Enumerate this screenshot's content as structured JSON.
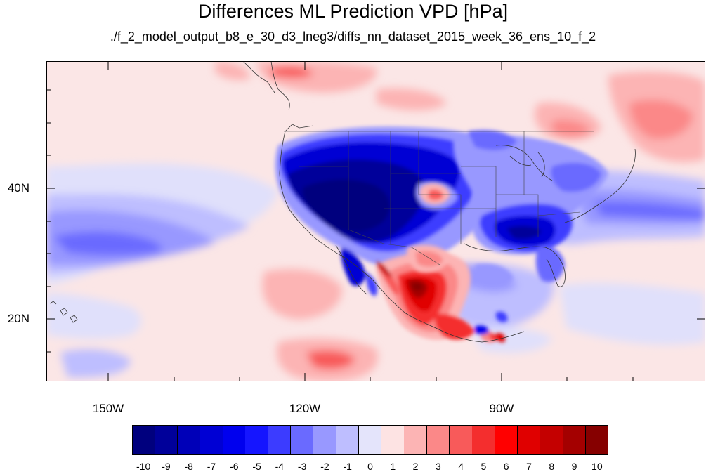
{
  "title": "Differences ML Prediction VPD [hPa]",
  "subtitle": "./f_2_model_output_b8_e_30_d3_lneg3/diffs_nn_dataset_2015_week_36_ens_10_f_2",
  "axes": {
    "y_labels": [
      "40N",
      "20N"
    ],
    "x_labels": [
      "150W",
      "120W",
      "90W"
    ]
  },
  "map": {
    "lon_range": [
      -159.5,
      -59
    ],
    "lat_range": [
      11,
      60
    ]
  },
  "colorbar": {
    "labels": [
      "-10",
      "-9",
      "-8",
      "-7",
      "-6",
      "-5",
      "-4",
      "-3",
      "-2",
      "-1",
      "0",
      "1",
      "2",
      "3",
      "4",
      "5",
      "6",
      "7",
      "8",
      "9",
      "10"
    ],
    "colors": [
      "#00007e",
      "#00009a",
      "#0000b8",
      "#0000d4",
      "#0000ee",
      "#1515ff",
      "#3c3cff",
      "#6a6aff",
      "#9898ff",
      "#bebeff",
      "#e4e4fb",
      "#fde3e3",
      "#fcb4b4",
      "#fb8888",
      "#f85a5a",
      "#f42e2e",
      "#ff0000",
      "#e00000",
      "#c40000",
      "#a40000",
      "#860000"
    ]
  }
}
